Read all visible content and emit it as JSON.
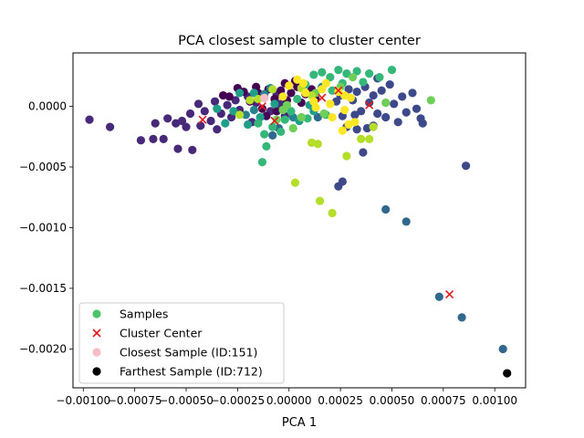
{
  "chart_data": {
    "type": "scatter",
    "title": "PCA closest sample to cluster center",
    "xlabel": "PCA 1",
    "ylabel": "",
    "xlim": [
      -0.00105,
      0.00115
    ],
    "ylim": [
      -0.00232,
      0.00044
    ],
    "x_ticks": [
      {
        "value": -0.001,
        "label": "−0.00100"
      },
      {
        "value": -0.00075,
        "label": "−0.00075"
      },
      {
        "value": -0.0005,
        "label": "−0.00050"
      },
      {
        "value": -0.00025,
        "label": "−0.00025"
      },
      {
        "value": 0.0,
        "label": "0.00000"
      },
      {
        "value": 0.00025,
        "label": "0.00025"
      },
      {
        "value": 0.0005,
        "label": "0.00050"
      },
      {
        "value": 0.00075,
        "label": "0.00075"
      },
      {
        "value": 0.001,
        "label": "0.00100"
      }
    ],
    "y_ticks": [
      {
        "value": 0.0,
        "label": "0.0000"
      },
      {
        "value": -0.0005,
        "label": "−0.0005"
      },
      {
        "value": -0.001,
        "label": "−0.0010"
      },
      {
        "value": -0.0015,
        "label": "−0.0015"
      },
      {
        "value": -0.002,
        "label": "−0.0020"
      }
    ],
    "grid": false,
    "legend_position": "lower-left",
    "legend": [
      {
        "label": "Samples",
        "marker": "circle",
        "color": "#4fc46a"
      },
      {
        "label": "Cluster Center",
        "marker": "x",
        "color": "#e31a1c"
      },
      {
        "label": "Closest Sample (ID:151)",
        "marker": "circle",
        "color": "#f6bcc8"
      },
      {
        "label": "Farthest Sample (ID:712)",
        "marker": "circle",
        "color": "#000000"
      }
    ],
    "cluster_colors": [
      "#440154",
      "#482878",
      "#3e4989",
      "#31688e",
      "#26828e",
      "#1f9e89",
      "#35b779",
      "#6ece58",
      "#b5de2b",
      "#fde725"
    ],
    "series": [
      {
        "name": "Samples",
        "points": [
          [
            -0.00097,
            -0.00011,
            1
          ],
          [
            -0.00087,
            -0.00017,
            1
          ],
          [
            -0.00072,
            -0.00028,
            1
          ],
          [
            -0.00066,
            -0.00027,
            1
          ],
          [
            -0.00061,
            -0.00027,
            1
          ],
          [
            -0.00054,
            -0.00035,
            1
          ],
          [
            -0.00047,
            -0.00036,
            1
          ],
          [
            -0.00065,
            -0.00014,
            1
          ],
          [
            -0.00059,
            -0.0001,
            1
          ],
          [
            -0.00052,
            -0.00012,
            1
          ],
          [
            -0.00048,
            -6e-05,
            1
          ],
          [
            -0.00044,
            2e-05,
            1
          ],
          [
            -0.00041,
            -4e-05,
            1
          ],
          [
            -0.00038,
            -0.00012,
            1
          ],
          [
            -0.00036,
            4e-05,
            1
          ],
          [
            -0.00033,
            -6e-05,
            1
          ],
          [
            -0.0003,
            1e-05,
            1
          ],
          [
            -0.00028,
            -9e-05,
            1
          ],
          [
            -0.00026,
            5e-05,
            1
          ],
          [
            -0.00024,
            -3e-05,
            1
          ],
          [
            -0.0002,
            8e-05,
            1
          ],
          [
            -0.00018,
            -0.00013,
            1
          ],
          [
            -0.00016,
            3e-05,
            1
          ],
          [
            -0.00012,
            7e-05,
            1
          ],
          [
            -9e-05,
            -4e-05,
            1
          ],
          [
            -6e-05,
            0.0001,
            1
          ],
          [
            -4e-05,
            2e-05,
            1
          ],
          [
            -2e-05,
            -8e-05,
            1
          ],
          [
            -0.00043,
            -0.00016,
            1
          ],
          [
            -0.00035,
            -0.00019,
            1
          ],
          [
            -0.0005,
            -0.00017,
            1
          ],
          [
            -0.00055,
            -0.00014,
            1
          ],
          [
            -0.00029,
            8e-05,
            0
          ],
          [
            -0.00022,
            0.00012,
            0
          ],
          [
            -0.00019,
            4e-05,
            0
          ],
          [
            -0.00015,
            0.00011,
            0
          ],
          [
            -0.00013,
            -2e-05,
            0
          ],
          [
            -0.0001,
            0.00014,
            0
          ],
          [
            -7e-05,
            6e-05,
            0
          ],
          [
            -4e-05,
            0.00013,
            0
          ],
          [
            -1e-05,
            5e-05,
            0
          ],
          [
            1e-05,
            0.00011,
            0
          ],
          [
            4e-05,
            0.00016,
            0
          ],
          [
            6e-05,
            3e-05,
            0
          ],
          [
            8e-05,
            0.0001,
            0
          ],
          [
            3e-05,
            0.00021,
            0
          ],
          [
            -0.00011,
            -8e-05,
            0
          ],
          [
            -0.00016,
            0.00016,
            0
          ],
          [
            -0.00025,
            0.00015,
            0
          ],
          [
            -0.00032,
            9e-05,
            0
          ],
          [
            -2e-05,
            0.00019,
            0
          ],
          [
            0.00011,
            0.00014,
            0
          ],
          [
            0.00013,
            6e-05,
            0
          ],
          [
            -6e-05,
            -4e-05,
            0
          ],
          [
            0.00031,
            5e-05,
            2
          ],
          [
            0.00033,
            0.00012,
            2
          ],
          [
            0.00035,
            -4e-05,
            2
          ],
          [
            0.00037,
            0.00016,
            2
          ],
          [
            0.00039,
            3e-05,
            2
          ],
          [
            0.00041,
            9e-05,
            2
          ],
          [
            0.00043,
            -6e-05,
            2
          ],
          [
            0.00045,
            0.00013,
            2
          ],
          [
            0.00047,
            -9e-05,
            2
          ],
          [
            0.00049,
            0.00018,
            2
          ],
          [
            0.00051,
            2e-05,
            2
          ],
          [
            0.00053,
            -0.00013,
            2
          ],
          [
            0.00055,
            8e-05,
            2
          ],
          [
            0.00057,
            -5e-05,
            2
          ],
          [
            0.0006,
            0.00011,
            2
          ],
          [
            0.00062,
            -2e-05,
            2
          ],
          [
            0.00064,
            -0.0001,
            2
          ],
          [
            0.00065,
            -0.00014,
            2
          ],
          [
            0.00043,
            0.00023,
            2
          ],
          [
            0.00029,
            0.00014,
            2
          ],
          [
            0.00026,
            -8e-05,
            2
          ],
          [
            0.00028,
            -0.00017,
            2
          ],
          [
            0.00033,
            -0.00019,
            2
          ],
          [
            0.00038,
            -0.00018,
            2
          ],
          [
            0.00041,
            -0.00016,
            2
          ],
          [
            0.00023,
            4e-05,
            2
          ],
          [
            0.00036,
            -0.00038,
            2
          ],
          [
            0.00024,
            -0.00066,
            2
          ],
          [
            0.00026,
            -0.00062,
            2
          ],
          [
            0.00086,
            -0.00049,
            2
          ],
          [
            0.00025,
            9e-05,
            2
          ],
          [
            0.00032,
            -7e-05,
            2
          ],
          [
            -5e-05,
            -0.00018,
            3
          ],
          [
            -8e-05,
            -0.00024,
            3
          ],
          [
            0.00014,
            -9e-05,
            3
          ],
          [
            0.00047,
            -0.00085,
            3
          ],
          [
            0.00057,
            -0.00095,
            3
          ],
          [
            0.00073,
            -0.00157,
            3
          ],
          [
            0.00084,
            -0.00174,
            3
          ],
          [
            0.00104,
            -0.002,
            3
          ],
          [
            -0.00012,
            0.0001,
            4
          ],
          [
            -0.00017,
            -3e-05,
            4
          ],
          [
            2e-05,
            -9e-05,
            4
          ],
          [
            -9e-05,
            0.00015,
            4
          ],
          [
            -0.00021,
            -7e-05,
            4
          ],
          [
            0.00016,
            0.00016,
            4
          ],
          [
            -0.00027,
            -4e-05,
            5
          ],
          [
            -0.0002,
            -0.00015,
            5
          ],
          [
            -0.00014,
            -9e-05,
            5
          ],
          [
            -0.00024,
            0.00011,
            5
          ],
          [
            -7e-05,
            2e-05,
            5
          ],
          [
            5e-05,
            -0.00012,
            5
          ],
          [
            0.0001,
            1e-05,
            5
          ],
          [
            -0.00017,
            0.00011,
            5
          ],
          [
            -0.00035,
            -2e-05,
            5
          ],
          [
            -0.00031,
            -0.00014,
            5
          ],
          [
            0.00012,
            -4e-05,
            5
          ],
          [
            0.00012,
            0.00026,
            6
          ],
          [
            0.00016,
            0.00028,
            6
          ],
          [
            0.0002,
            0.00024,
            6
          ],
          [
            0.00024,
            0.0003,
            6
          ],
          [
            0.00028,
            0.00027,
            6
          ],
          [
            0.00033,
            0.00029,
            6
          ],
          [
            0.00039,
            0.00027,
            6
          ],
          [
            0.00044,
            0.00024,
            6
          ],
          [
            0.0005,
            0.0003,
            6
          ],
          [
            8e-05,
            0.00018,
            6
          ],
          [
            4e-05,
            6e-05,
            6
          ],
          [
            1e-05,
            -4e-05,
            6
          ],
          [
            -2e-05,
            -0.00011,
            6
          ],
          [
            -4e-05,
            -0.00021,
            6
          ],
          [
            -8e-05,
            -0.00017,
            6
          ],
          [
            -0.00012,
            -0.00023,
            6
          ],
          [
            -0.00015,
            -0.00014,
            6
          ],
          [
            -0.00011,
            -0.00033,
            6
          ],
          [
            -0.00013,
            -0.00046,
            6
          ],
          [
            0.00021,
            0.00013,
            6
          ],
          [
            0.00018,
            -7e-05,
            6
          ],
          [
            9e-05,
            -0.0001,
            6
          ],
          [
            0.00026,
            0.00019,
            6
          ],
          [
            0.00036,
            0.0002,
            6
          ],
          [
            0.00069,
            5e-05,
            7
          ],
          [
            0.00047,
            3e-05,
            7
          ],
          [
            0.00017,
            -6e-05,
            7
          ],
          [
            0.00013,
            0.00011,
            7
          ],
          [
            -1e-05,
            1e-05,
            7
          ],
          [
            -6e-05,
            -0.00011,
            7
          ],
          [
            2e-05,
            -0.00018,
            7
          ],
          [
            6e-05,
            -9e-05,
            7
          ],
          [
            -3e-05,
            -3e-05,
            7
          ],
          [
            0.00025,
            0.00016,
            7
          ],
          [
            0.00031,
            0.00024,
            7
          ],
          [
            3e-05,
            -0.00063,
            8
          ],
          [
            0.00015,
            -0.00078,
            8
          ],
          [
            0.00021,
            -0.00088,
            8
          ],
          [
            0.00011,
            -0.0003,
            8
          ],
          [
            0.00014,
            -0.00031,
            8
          ],
          [
            0.00028,
            -0.00041,
            8
          ],
          [
            0.00035,
            -0.00027,
            8
          ],
          [
            0.00039,
            -0.00027,
            8
          ],
          [
            0.00041,
            -0.00017,
            8
          ],
          [
            -8e-05,
            0.00014,
            8
          ],
          [
            -0.00019,
            5e-05,
            8
          ],
          [
            -0.00024,
            -7e-05,
            8
          ],
          [
            6e-05,
            0.00015,
            8
          ],
          [
            -0.00015,
            6e-05,
            8
          ],
          [
            0.00011,
            9e-05,
            8
          ],
          [
            0.0,
            0.00017,
            9
          ],
          [
            4e-05,
            0.00022,
            9
          ],
          [
            8e-05,
            0.00011,
            9
          ],
          [
            0.00012,
            4e-05,
            9
          ],
          [
            0.00016,
            0.00014,
            9
          ],
          [
            0.0002,
            2e-05,
            9
          ],
          [
            0.00024,
            0.00012,
            9
          ],
          [
            0.00027,
            -3e-05,
            9
          ],
          [
            0.0003,
            7e-05,
            9
          ],
          [
            0.00029,
            -0.00015,
            9
          ],
          [
            0.00026,
            -0.0002,
            9
          ],
          [
            0.00032,
            -0.00013,
            9
          ],
          [
            0.00021,
            -9e-05,
            9
          ],
          [
            -3e-05,
            8e-05,
            9
          ],
          [
            0.00018,
            0.00019,
            9
          ],
          [
            7e-05,
            0.00019,
            9
          ],
          [
            0.00013,
            -1e-05,
            9
          ],
          [
            0.00027,
            9e-05,
            9
          ]
        ]
      },
      {
        "name": "Cluster Center",
        "points": [
          [
            -0.00042,
            -0.00011
          ],
          [
            -0.00013,
            0.0
          ],
          [
            -7e-05,
            -0.00012
          ],
          [
            0.00016,
            7e-05
          ],
          [
            0.00024,
            0.00013
          ],
          [
            0.00039,
            1e-05
          ],
          [
            0.00078,
            -0.00155
          ]
        ]
      },
      {
        "name": "Closest Sample (ID:151)",
        "points": [
          [
            -0.00012,
            7e-05
          ]
        ]
      },
      {
        "name": "Farthest Sample (ID:712)",
        "points": [
          [
            0.00106,
            -0.0022
          ]
        ]
      }
    ]
  }
}
